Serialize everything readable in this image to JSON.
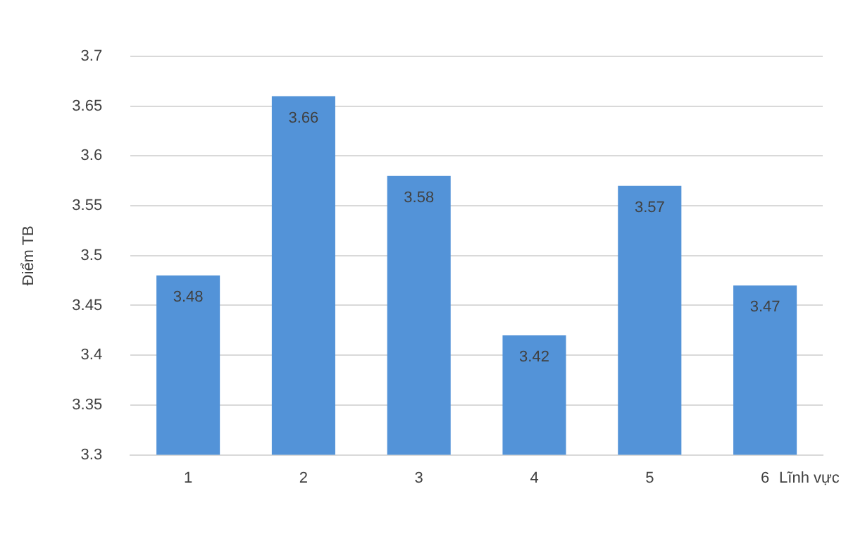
{
  "chart_data": {
    "type": "bar",
    "ylabel": "Điểm TB",
    "xlabel": "Lĩnh vực",
    "categories": [
      "1",
      "2",
      "3",
      "4",
      "5",
      "6"
    ],
    "values": [
      3.48,
      3.66,
      3.58,
      3.42,
      3.57,
      3.47
    ],
    "color": "#5393d8",
    "ylim": [
      3.3,
      3.7
    ],
    "yticks": [
      3.3,
      3.35,
      3.4,
      3.45,
      3.5,
      3.55,
      3.6,
      3.65,
      3.7
    ],
    "grid": "y",
    "data_labels": true,
    "legend": false
  }
}
